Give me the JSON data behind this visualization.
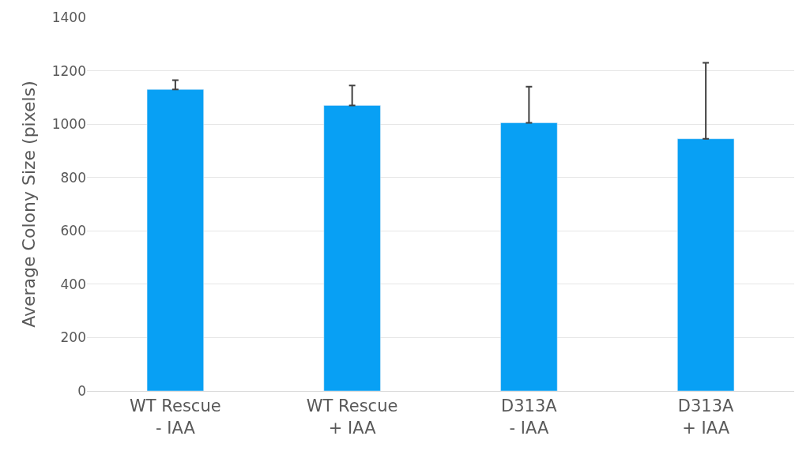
{
  "chart_data": {
    "type": "bar",
    "ylabel": "Average Colony Size (pixels)",
    "categories": [
      "WT Rescue\n- IAA",
      "WT Rescue\n+ IAA",
      "D313A\n- IAA",
      "D313A\n+ IAA"
    ],
    "values": [
      1130,
      1070,
      1005,
      945
    ],
    "errors": [
      [
        1130,
        1165
      ],
      [
        1070,
        1145
      ],
      [
        1005,
        1140
      ],
      [
        945,
        1230
      ]
    ],
    "color": "#08a0f4",
    "ylim": [
      0,
      1400
    ],
    "yticks": [
      0,
      200,
      400,
      600,
      800,
      1000,
      1200,
      1400
    ],
    "grid": "y",
    "legend": false
  }
}
